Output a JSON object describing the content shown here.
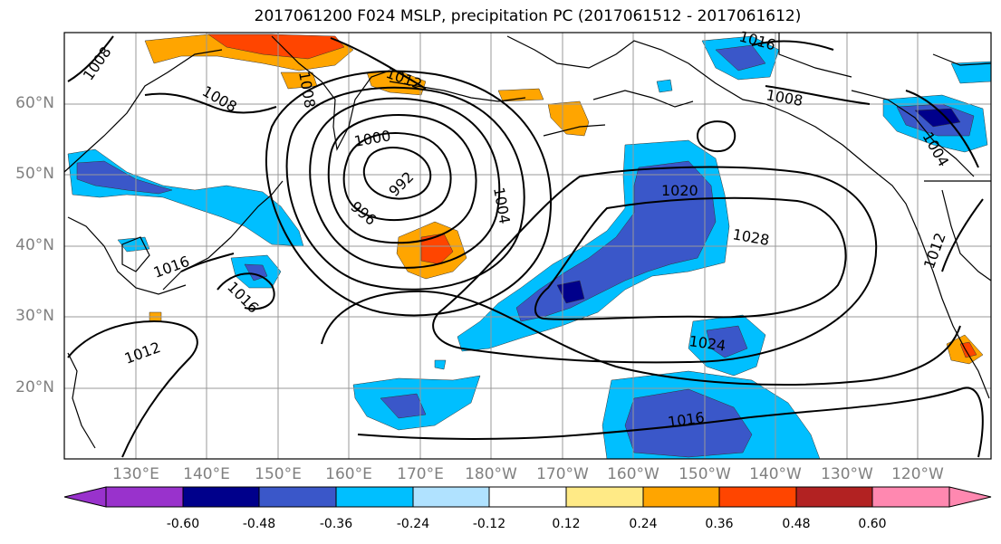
{
  "title": "2017061200 F024 MSLP, precipitation PC (2017061512 - 2017061612)",
  "lat_labels": [
    "60°N",
    "50°N",
    "40°N",
    "30°N",
    "20°N"
  ],
  "lon_labels": [
    "130°E",
    "140°E",
    "150°E",
    "160°E",
    "170°E",
    "180°W",
    "170°W",
    "160°W",
    "150°W",
    "140°W",
    "130°W",
    "120°W"
  ],
  "contour_labels": [
    "1008",
    "1008",
    "1008",
    "1012",
    "1016",
    "1000",
    "992",
    "996",
    "1004",
    "1008",
    "1020",
    "1028",
    "1024",
    "1016",
    "1016",
    "1016",
    "1012",
    "1004",
    "1012"
  ],
  "colorbar": {
    "colors": [
      "#9932cc",
      "#00008b",
      "#3a57c9",
      "#00bfff",
      "#b0e2ff",
      "#ffffff",
      "#ffea86",
      "#ffa500",
      "#ff4500",
      "#b22222",
      "#ff88b0"
    ],
    "tick_labels": [
      "-0.60",
      "-0.48",
      "-0.36",
      "-0.24",
      "-0.12",
      "0.12",
      "0.24",
      "0.36",
      "0.48",
      "0.60"
    ]
  }
}
